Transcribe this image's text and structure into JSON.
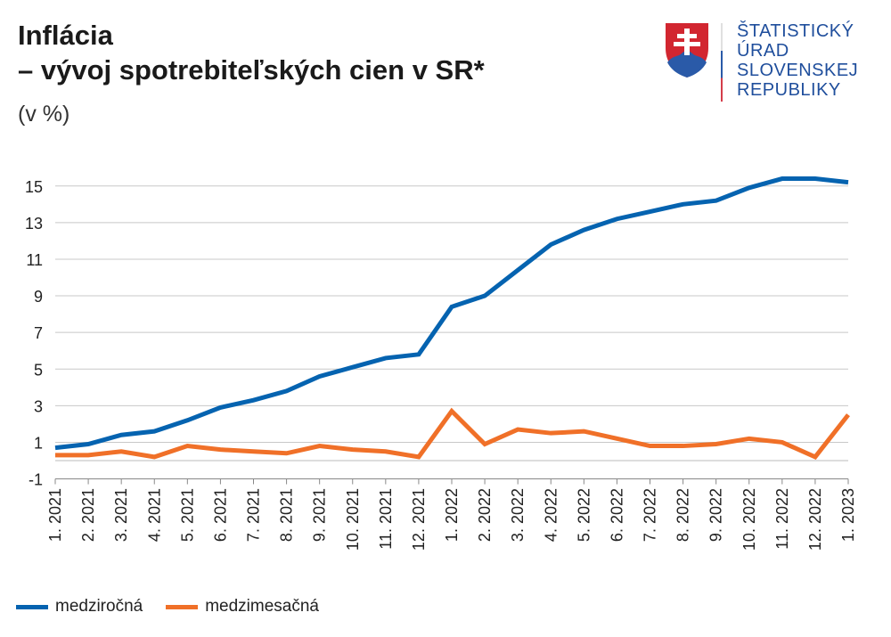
{
  "title_line1": "Inflácia",
  "title_line2": "– vývoj spotrebiteľských cien v SR*",
  "subtitle": "(v %)",
  "logo": {
    "lines": [
      "ŠTATISTICKÝ",
      "ÚRAD",
      "SLOVENSKEJ",
      "REPUBLIKY"
    ]
  },
  "chart_data": {
    "type": "line",
    "title": "Inflácia – vývoj spotrebiteľských cien v SR*",
    "ylabel": "(v %)",
    "ylim": [
      -1,
      16
    ],
    "yticks": [
      -1,
      1,
      3,
      5,
      7,
      9,
      11,
      13,
      15
    ],
    "grid": true,
    "legend_placement": "bottom-left",
    "categories": [
      "1. 2021",
      "2. 2021",
      "3. 2021",
      "4. 2021",
      "5. 2021",
      "6. 2021",
      "7. 2021",
      "8. 2021",
      "9. 2021",
      "10. 2021",
      "11. 2021",
      "12. 2021",
      "1. 2022",
      "2. 2022",
      "3. 2022",
      "4. 2022",
      "5. 2022",
      "6. 2022",
      "7. 2022",
      "8. 2022",
      "9. 2022",
      "10. 2022",
      "11. 2022",
      "12. 2022",
      "1. 2023"
    ],
    "series": [
      {
        "name": "medziročná",
        "color": "#0563b0",
        "values": [
          0.7,
          0.9,
          1.4,
          1.6,
          2.2,
          2.9,
          3.3,
          3.8,
          4.6,
          5.1,
          5.6,
          5.8,
          8.4,
          9.0,
          10.4,
          11.8,
          12.6,
          13.2,
          13.6,
          14.0,
          14.2,
          14.9,
          15.4,
          15.4,
          15.2
        ]
      },
      {
        "name": "medzimesačná",
        "color": "#f07028",
        "values": [
          0.3,
          0.3,
          0.5,
          0.2,
          0.8,
          0.6,
          0.5,
          0.4,
          0.8,
          0.6,
          0.5,
          0.2,
          2.7,
          0.9,
          1.7,
          1.5,
          1.6,
          1.2,
          0.8,
          0.8,
          0.9,
          1.2,
          1.0,
          0.2,
          2.5
        ]
      }
    ]
  }
}
